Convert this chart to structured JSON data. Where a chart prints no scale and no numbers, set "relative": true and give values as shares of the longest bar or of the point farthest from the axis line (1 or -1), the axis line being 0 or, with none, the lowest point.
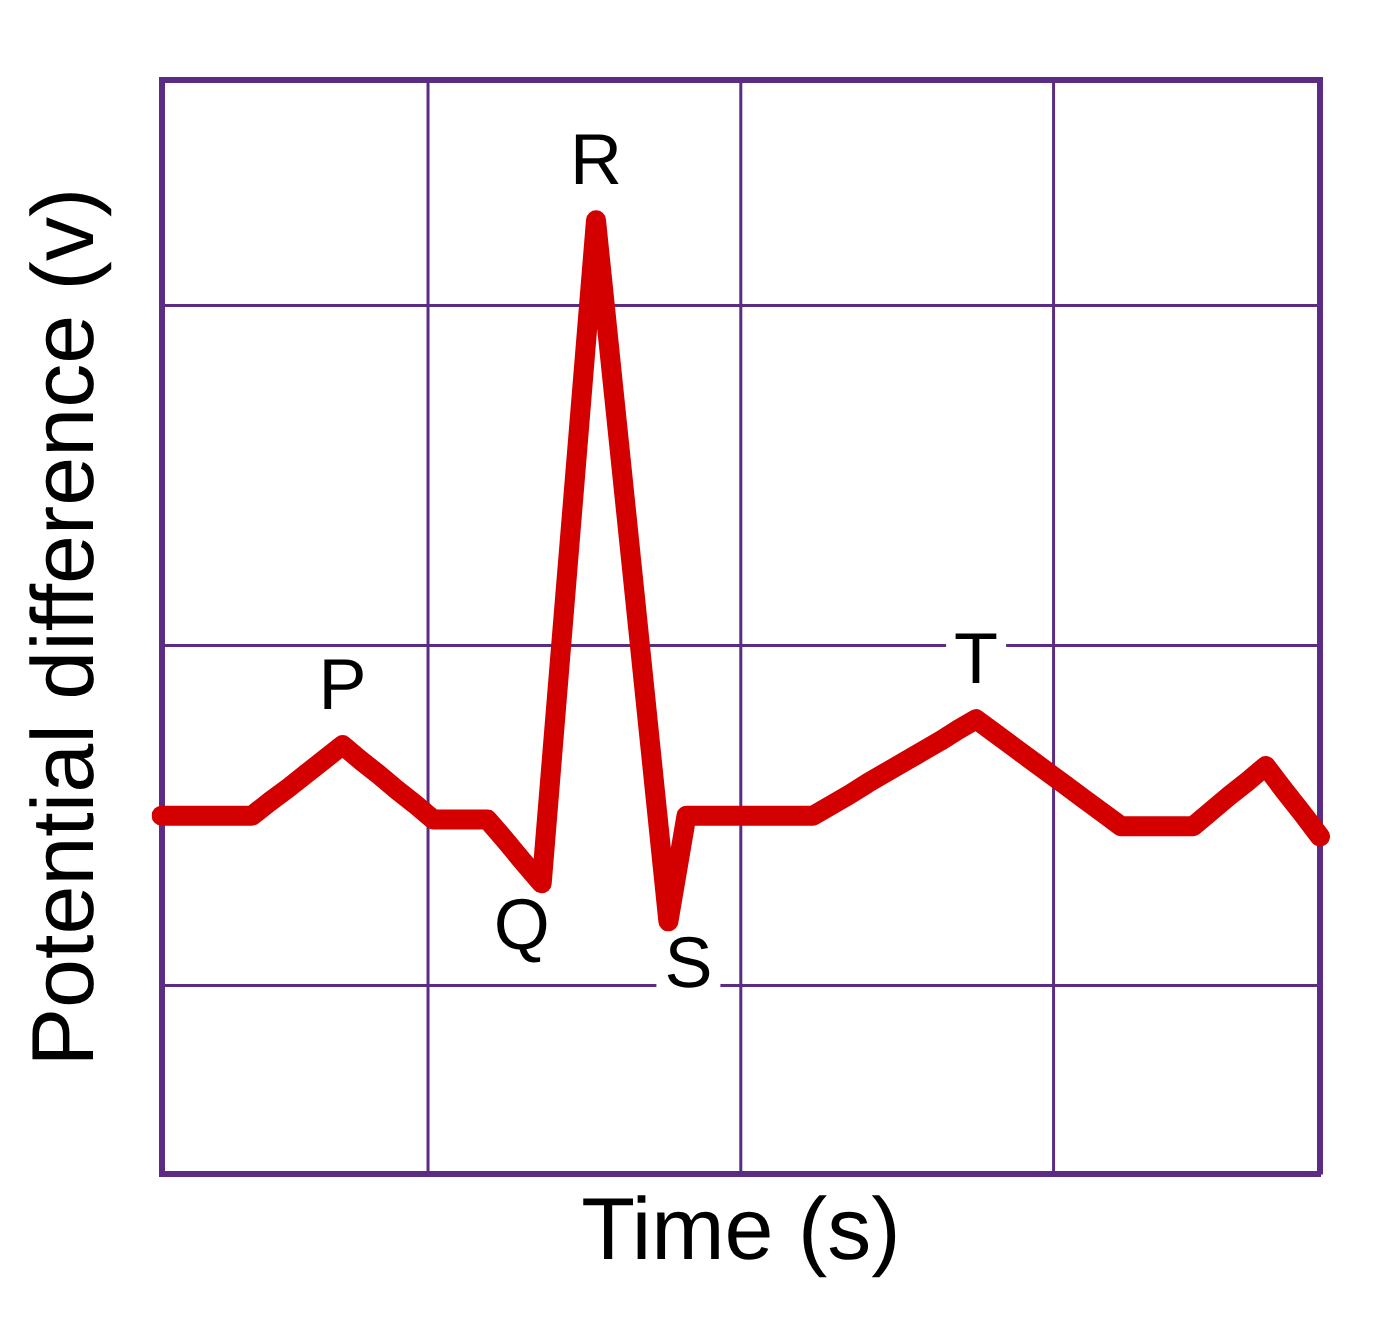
{
  "chart_data": {
    "type": "line",
    "relative": true,
    "xlabel": "Time (s)",
    "ylabel": "Potential difference (v)",
    "categories": [
      null,
      null,
      null,
      null,
      null,
      null,
      null,
      null,
      null,
      null,
      null,
      null,
      null,
      null,
      null,
      null,
      null,
      null,
      null,
      null,
      null,
      null,
      null,
      null,
      null,
      null,
      null,
      null,
      null,
      null,
      null,
      null,
      null,
      null,
      null,
      null,
      null,
      null,
      null,
      null,
      null,
      null,
      null,
      null,
      null,
      null,
      null,
      null,
      null,
      null,
      null,
      null,
      null,
      null,
      null,
      null,
      null,
      null,
      null,
      null,
      null,
      null,
      null,
      null,
      null
    ],
    "series": [
      {
        "color": "#d40000",
        "values": [
          0.376,
          0.376,
          0.376,
          0.376,
          0.376,
          0.376,
          0.391,
          0.405,
          0.42,
          0.435,
          0.45,
          0.434,
          0.419,
          0.403,
          0.388,
          0.372,
          0.372,
          0.372,
          0.372,
          0.35,
          0.327,
          0.305,
          0.537,
          0.768,
          1.0,
          0.816,
          0.633,
          0.449,
          0.265,
          0.376,
          0.376,
          0.376,
          0.376,
          0.376,
          0.376,
          0.376,
          0.376,
          0.387,
          0.398,
          0.41,
          0.421,
          0.432,
          0.443,
          0.454,
          0.466,
          0.477,
          0.463,
          0.449,
          0.435,
          0.421,
          0.407,
          0.393,
          0.379,
          0.365,
          0.365,
          0.365,
          0.365,
          0.365,
          0.381,
          0.397,
          0.412,
          0.428,
          0.403,
          0.379,
          0.354
        ]
      }
    ],
    "annotations": [
      {
        "text": "P",
        "y": 0.45
      },
      {
        "text": "Q",
        "y": 0.305
      },
      {
        "text": "R",
        "y": 1.0
      },
      {
        "text": "S",
        "y": 0.265
      },
      {
        "text": "T",
        "y": 0.477
      }
    ],
    "tick_labels": false,
    "grid": true,
    "legend": false,
    "marker": "none",
    "line_style": "solid"
  }
}
